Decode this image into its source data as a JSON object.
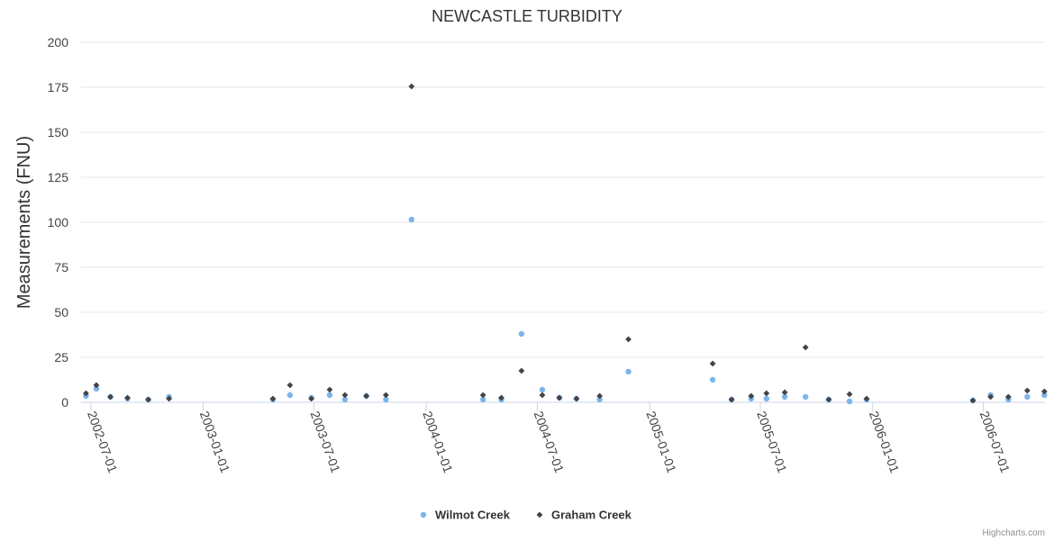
{
  "chart_data": {
    "type": "scatter",
    "title": "NEWCASTLE TURBIDITY",
    "xlabel": "",
    "ylabel": "Measurements (FNU)",
    "ylim": [
      0,
      200
    ],
    "yticks": [
      0,
      25,
      50,
      75,
      100,
      125,
      150,
      175,
      200
    ],
    "xlim": [
      "2002-06-15",
      "2006-10-10"
    ],
    "xticks": [
      "2002-07-01",
      "2003-01-01",
      "2003-07-01",
      "2004-01-01",
      "2004-07-01",
      "2005-01-01",
      "2005-07-01",
      "2006-01-01",
      "2006-07-01"
    ],
    "legend_position": "bottom-center",
    "credits": "Highcharts.com",
    "series": [
      {
        "name": "Wilmot Creek",
        "color": "#7cb5ec",
        "marker": "circle",
        "points": [
          [
            "2002-06-23",
            3.5
          ],
          [
            "2002-07-10",
            7.5
          ],
          [
            "2002-08-02",
            3.0
          ],
          [
            "2002-08-30",
            2.0
          ],
          [
            "2002-10-03",
            1.5
          ],
          [
            "2002-11-06",
            3.0
          ],
          [
            "2003-04-25",
            1.5
          ],
          [
            "2003-05-23",
            4.0
          ],
          [
            "2003-06-27",
            2.5
          ],
          [
            "2003-07-27",
            4.0
          ],
          [
            "2003-08-21",
            1.5
          ],
          [
            "2003-09-25",
            3.5
          ],
          [
            "2003-10-27",
            1.5
          ],
          [
            "2003-12-08",
            101.5
          ],
          [
            "2004-04-03",
            1.5
          ],
          [
            "2004-05-03",
            1.5
          ],
          [
            "2004-06-05",
            38.0
          ],
          [
            "2004-07-09",
            7.0
          ],
          [
            "2004-08-06",
            2.5
          ],
          [
            "2004-09-03",
            2.0
          ],
          [
            "2004-10-11",
            1.5
          ],
          [
            "2004-11-27",
            17.0
          ],
          [
            "2005-04-14",
            12.5
          ],
          [
            "2005-05-15",
            1.5
          ],
          [
            "2005-06-16",
            2.0
          ],
          [
            "2005-07-11",
            2.0
          ],
          [
            "2005-08-10",
            3.0
          ],
          [
            "2005-09-13",
            3.0
          ],
          [
            "2005-10-21",
            1.5
          ],
          [
            "2005-11-24",
            0.5
          ],
          [
            "2005-12-22",
            1.5
          ],
          [
            "2006-06-14",
            1.0
          ],
          [
            "2006-07-13",
            4.0
          ],
          [
            "2006-08-11",
            1.5
          ],
          [
            "2006-09-11",
            3.0
          ],
          [
            "2006-10-09",
            4.0
          ]
        ]
      },
      {
        "name": "Graham Creek",
        "color": "#434348",
        "marker": "diamond",
        "points": [
          [
            "2002-06-23",
            5.0
          ],
          [
            "2002-07-10",
            9.5
          ],
          [
            "2002-08-02",
            3.0
          ],
          [
            "2002-08-30",
            2.5
          ],
          [
            "2002-10-03",
            1.5
          ],
          [
            "2002-11-06",
            2.0
          ],
          [
            "2003-04-25",
            2.0
          ],
          [
            "2003-05-23",
            9.5
          ],
          [
            "2003-06-27",
            2.0
          ],
          [
            "2003-07-27",
            7.0
          ],
          [
            "2003-08-21",
            4.0
          ],
          [
            "2003-09-25",
            3.5
          ],
          [
            "2003-10-27",
            4.0
          ],
          [
            "2003-12-08",
            175.5
          ],
          [
            "2004-04-03",
            4.0
          ],
          [
            "2004-05-03",
            2.5
          ],
          [
            "2004-06-05",
            17.5
          ],
          [
            "2004-07-09",
            4.0
          ],
          [
            "2004-08-06",
            2.5
          ],
          [
            "2004-09-03",
            2.0
          ],
          [
            "2004-10-11",
            3.5
          ],
          [
            "2004-11-27",
            35.0
          ],
          [
            "2005-04-14",
            21.5
          ],
          [
            "2005-05-15",
            1.5
          ],
          [
            "2005-06-16",
            3.5
          ],
          [
            "2005-07-11",
            5.0
          ],
          [
            "2005-08-10",
            5.5
          ],
          [
            "2005-09-13",
            30.5
          ],
          [
            "2005-10-21",
            1.5
          ],
          [
            "2005-11-24",
            4.5
          ],
          [
            "2005-12-22",
            2.0
          ],
          [
            "2006-06-14",
            1.0
          ],
          [
            "2006-07-13",
            3.0
          ],
          [
            "2006-08-11",
            3.0
          ],
          [
            "2006-09-11",
            6.5
          ],
          [
            "2006-10-09",
            6.0
          ]
        ]
      }
    ]
  }
}
